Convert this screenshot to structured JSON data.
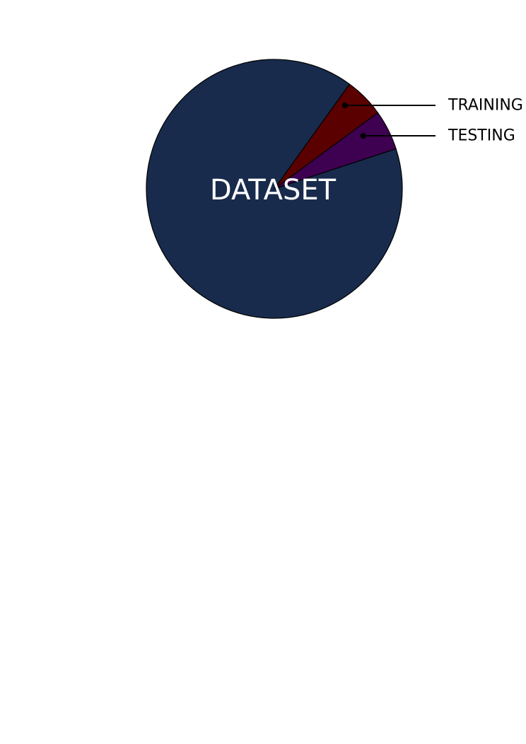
{
  "chart_data": {
    "type": "pie",
    "center_label": "DATASET",
    "start_angle_deg": 54,
    "slices": [
      {
        "name": "TRAINING",
        "value": 5,
        "color": "#5b0000",
        "labeled": true
      },
      {
        "name": "TESTING",
        "value": 5,
        "color": "#3e0050",
        "labeled": true
      },
      {
        "name": "",
        "value": 90,
        "color": "#182b4c",
        "labeled": false
      }
    ],
    "stroke_color": "#000000",
    "background_color": "#ffffff"
  }
}
